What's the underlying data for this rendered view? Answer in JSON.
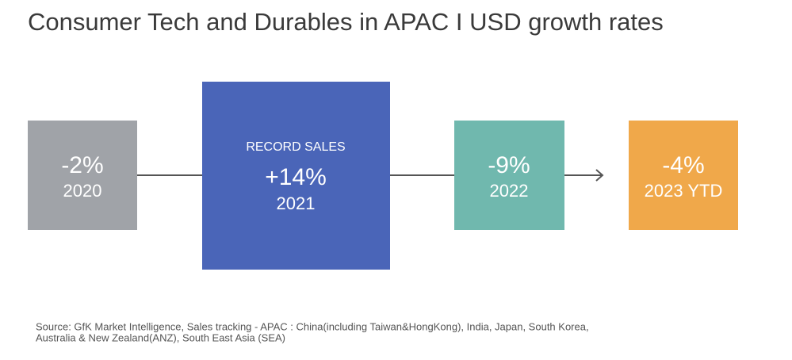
{
  "header": {
    "title": "Consumer Tech and Durables in APAC I USD growth rates"
  },
  "nodes": [
    {
      "value": "-2%",
      "label": "2020"
    },
    {
      "tag": "RECORD SALES",
      "value": "+14%",
      "label": "2021"
    },
    {
      "value": "-9%",
      "label": "2022"
    },
    {
      "value": "-4%",
      "label": "2023 YTD"
    }
  ],
  "footer": {
    "source": [
      "Source: GfK Market Intelligence, Sales tracking - APAC : China(including Taiwan&HongKong), India, Japan, South Korea,",
      "Australia & New Zealand(ANZ), South East Asia (SEA)"
    ]
  }
}
